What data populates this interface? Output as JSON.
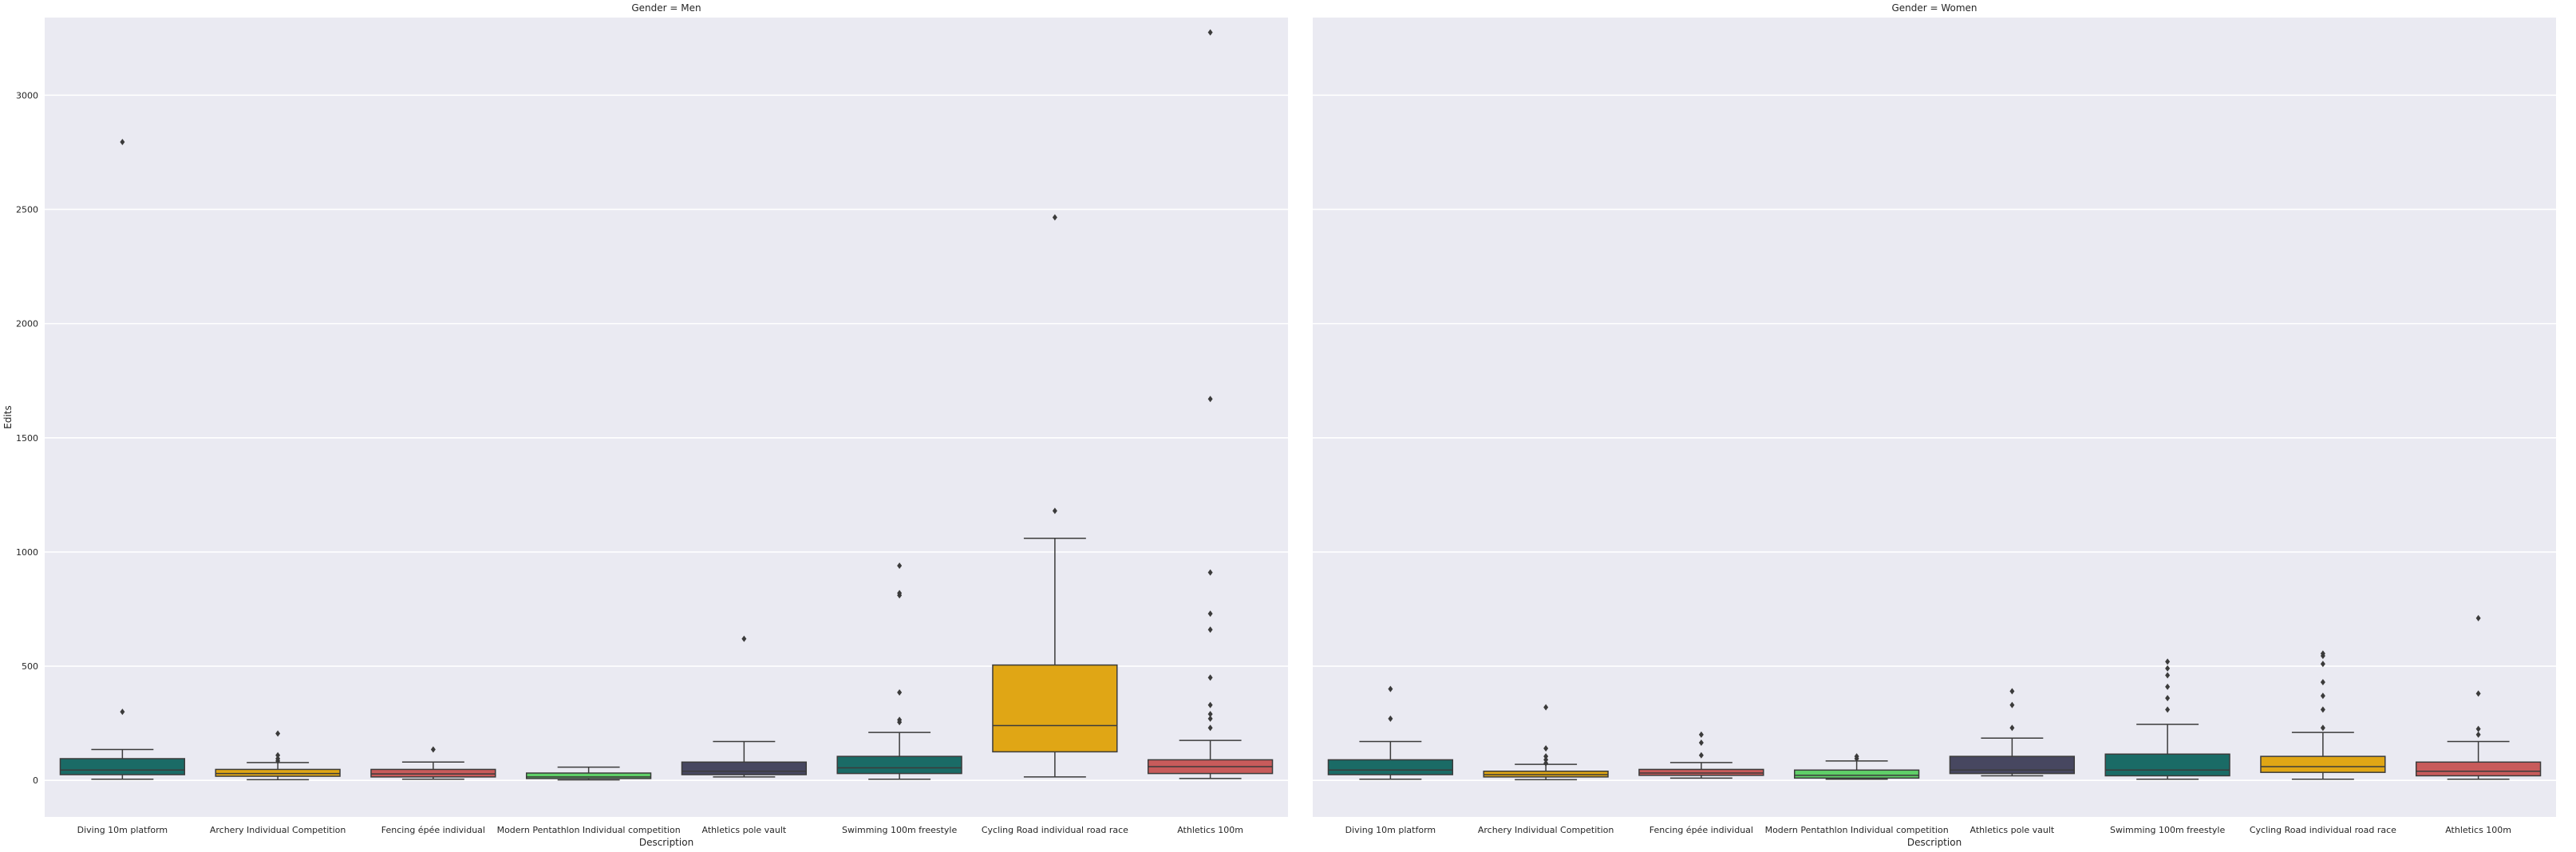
{
  "chart_data": {
    "type": "box",
    "ylabel": "Edits",
    "ylim": [
      -160,
      3340
    ],
    "yticks": [
      0,
      500,
      1000,
      1500,
      2000,
      2500,
      3000
    ],
    "categories": [
      "Diving 10m platform",
      "Archery Individual Competition",
      "Fencing épée individual",
      "Modern Pentathlon Individual competition",
      "Athletics pole vault",
      "Swimming 100m freestyle",
      "Cycling Road individual road race",
      "Athletics 100m"
    ],
    "colors": [
      "#1a6b66",
      "#e0a615",
      "#c85b5b",
      "#5fcf68",
      "#474760",
      "#1a6b66",
      "#e0a615",
      "#c85b5b"
    ],
    "facets": [
      {
        "title": "Gender = Men",
        "xlabel": "Description",
        "boxes": [
          {
            "whislo": 5,
            "q1": 25,
            "med": 45,
            "q3": 95,
            "whishi": 135,
            "fliers": [
              300,
              2795
            ]
          },
          {
            "whislo": 3,
            "q1": 18,
            "med": 30,
            "q3": 48,
            "whishi": 78,
            "fliers": [
              85,
              95,
              110,
              205
            ]
          },
          {
            "whislo": 5,
            "q1": 15,
            "med": 28,
            "q3": 48,
            "whishi": 80,
            "fliers": [
              135
            ]
          },
          {
            "whislo": 2,
            "q1": 8,
            "med": 15,
            "q3": 32,
            "whishi": 58,
            "fliers": []
          },
          {
            "whislo": 15,
            "q1": 25,
            "med": 40,
            "q3": 80,
            "whishi": 170,
            "fliers": [
              620
            ]
          },
          {
            "whislo": 5,
            "q1": 30,
            "med": 55,
            "q3": 105,
            "whishi": 210,
            "fliers": [
              255,
              265,
              385,
              810,
              820,
              940
            ]
          },
          {
            "whislo": 15,
            "q1": 125,
            "med": 240,
            "q3": 505,
            "whishi": 1060,
            "fliers": [
              1180,
              2465
            ]
          },
          {
            "whislo": 8,
            "q1": 30,
            "med": 60,
            "q3": 90,
            "whishi": 175,
            "fliers": [
              230,
              270,
              290,
              330,
              450,
              660,
              730,
              910,
              1670,
              3275
            ]
          }
        ]
      },
      {
        "title": "Gender = Women",
        "xlabel": "Description",
        "boxes": [
          {
            "whislo": 5,
            "q1": 25,
            "med": 45,
            "q3": 90,
            "whishi": 170,
            "fliers": [
              270,
              400
            ]
          },
          {
            "whislo": 3,
            "q1": 15,
            "med": 25,
            "q3": 40,
            "whishi": 70,
            "fliers": [
              75,
              90,
              105,
              140,
              320
            ]
          },
          {
            "whislo": 10,
            "q1": 22,
            "med": 32,
            "q3": 48,
            "whishi": 78,
            "fliers": [
              110,
              165,
              200
            ]
          },
          {
            "whislo": 5,
            "q1": 10,
            "med": 22,
            "q3": 45,
            "whishi": 85,
            "fliers": [
              95,
              105
            ]
          },
          {
            "whislo": 20,
            "q1": 30,
            "med": 45,
            "q3": 105,
            "whishi": 185,
            "fliers": [
              230,
              330,
              390
            ]
          },
          {
            "whislo": 5,
            "q1": 20,
            "med": 45,
            "q3": 115,
            "whishi": 245,
            "fliers": [
              310,
              360,
              410,
              460,
              490,
              520
            ]
          },
          {
            "whislo": 5,
            "q1": 35,
            "med": 60,
            "q3": 105,
            "whishi": 210,
            "fliers": [
              230,
              310,
              370,
              430,
              510,
              545,
              555
            ]
          },
          {
            "whislo": 5,
            "q1": 20,
            "med": 40,
            "q3": 80,
            "whishi": 170,
            "fliers": [
              200,
              225,
              380,
              710
            ]
          }
        ]
      }
    ],
    "grid": true,
    "legend": "none"
  }
}
